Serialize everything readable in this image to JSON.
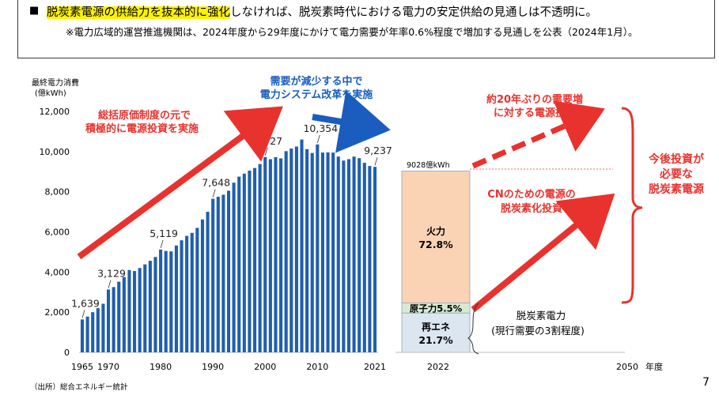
{
  "header": {
    "bullet": "■",
    "headline_highlight": "脱炭素電源の供給力を抜本的に強化",
    "headline_rest": "しなければ、脱炭素時代における電力の安定供給の見通しは不透明に。",
    "note": "※電力広域的運営推進機関は、2024年度から29年度にかけて電力需要が年率0.6%程度で増加する見通しを公表（2024年1月）。"
  },
  "chart_data": {
    "type": "bar",
    "ylabel_line1": "最終電力消費",
    "ylabel_line2": "(億kWh)",
    "ylim": [
      0,
      12000
    ],
    "yticks": [
      "0",
      "2,000",
      "4,000",
      "6,000",
      "8,000",
      "10,000",
      "12,000"
    ],
    "xticks": [
      "1965",
      "1970",
      "1980",
      "1990",
      "2000",
      "2010",
      "2021"
    ],
    "bar_color": "#1f5fae",
    "years": [
      1965,
      1966,
      1967,
      1968,
      1969,
      1970,
      1971,
      1972,
      1973,
      1974,
      1975,
      1976,
      1977,
      1978,
      1979,
      1980,
      1981,
      1982,
      1983,
      1984,
      1985,
      1986,
      1987,
      1988,
      1989,
      1990,
      1991,
      1992,
      1993,
      1994,
      1995,
      1996,
      1997,
      1998,
      1999,
      2000,
      2001,
      2002,
      2003,
      2004,
      2005,
      2006,
      2007,
      2008,
      2009,
      2010,
      2011,
      2012,
      2013,
      2014,
      2015,
      2016,
      2017,
      2018,
      2019,
      2020,
      2021
    ],
    "values": [
      1639,
      1780,
      2000,
      2200,
      2420,
      3129,
      3250,
      3520,
      3750,
      4100,
      4050,
      4200,
      4380,
      4560,
      4750,
      5119,
      5050,
      5030,
      5320,
      5580,
      5800,
      5950,
      6200,
      6620,
      7000,
      7648,
      7750,
      7850,
      8050,
      8450,
      8750,
      8900,
      9050,
      9180,
      9380,
      9727,
      9620,
      9720,
      9660,
      10020,
      10150,
      10250,
      10600,
      10120,
      9930,
      10354,
      9950,
      9960,
      9950,
      9750,
      9550,
      9620,
      9750,
      9670,
      9440,
      9280,
      9237
    ],
    "data_labels": [
      {
        "year": 1965,
        "text": "1,639"
      },
      {
        "year": 1970,
        "text": "3,129"
      },
      {
        "year": 1980,
        "text": "5,119"
      },
      {
        "year": 1990,
        "text": "7,648"
      },
      {
        "year": 2000,
        "text": "9,727"
      },
      {
        "year": 2010,
        "text": "10,354"
      },
      {
        "year": 2021,
        "text": "9,237"
      }
    ],
    "annotations": {
      "a1_line1": "総括原価制度の元で",
      "a1_line2": "積極的に電源投資を実施",
      "a2_line1": "需要が減少する中で",
      "a2_line2": "電力システム改革を実施",
      "a3_line1": "約20年ぶりの需要増",
      "a3_line2": "に対する電源投資",
      "a4_line1": "CNのための電源の",
      "a4_line2": "脱炭素化投資",
      "a5_line1": "今後投資が",
      "a5_line2": "必要な",
      "a5_line3": "脱炭素電源"
    },
    "mix_2022": {
      "total_label": "9028億kWh",
      "segments": [
        {
          "name": "再エネ",
          "value": "21.7%",
          "pct": 21.7,
          "color": "#dce6f1"
        },
        {
          "name": "原子力",
          "value": "5.5%",
          "pct": 5.5,
          "color": "#d6ead2"
        },
        {
          "name": "火力",
          "value": "72.8%",
          "pct": 72.8,
          "color": "#f9d3b4"
        }
      ],
      "bracket_line1": "脱炭素電力",
      "bracket_line2": "(現行需要の3割程度)"
    },
    "right_axis": {
      "x1": "2022",
      "x2": "2050",
      "unit": "年度"
    },
    "accent_red": "#e8322e",
    "accent_blue": "#1a5dbf"
  },
  "footer": {
    "source": "（出所）総合エネルギー統計",
    "page": "7"
  }
}
